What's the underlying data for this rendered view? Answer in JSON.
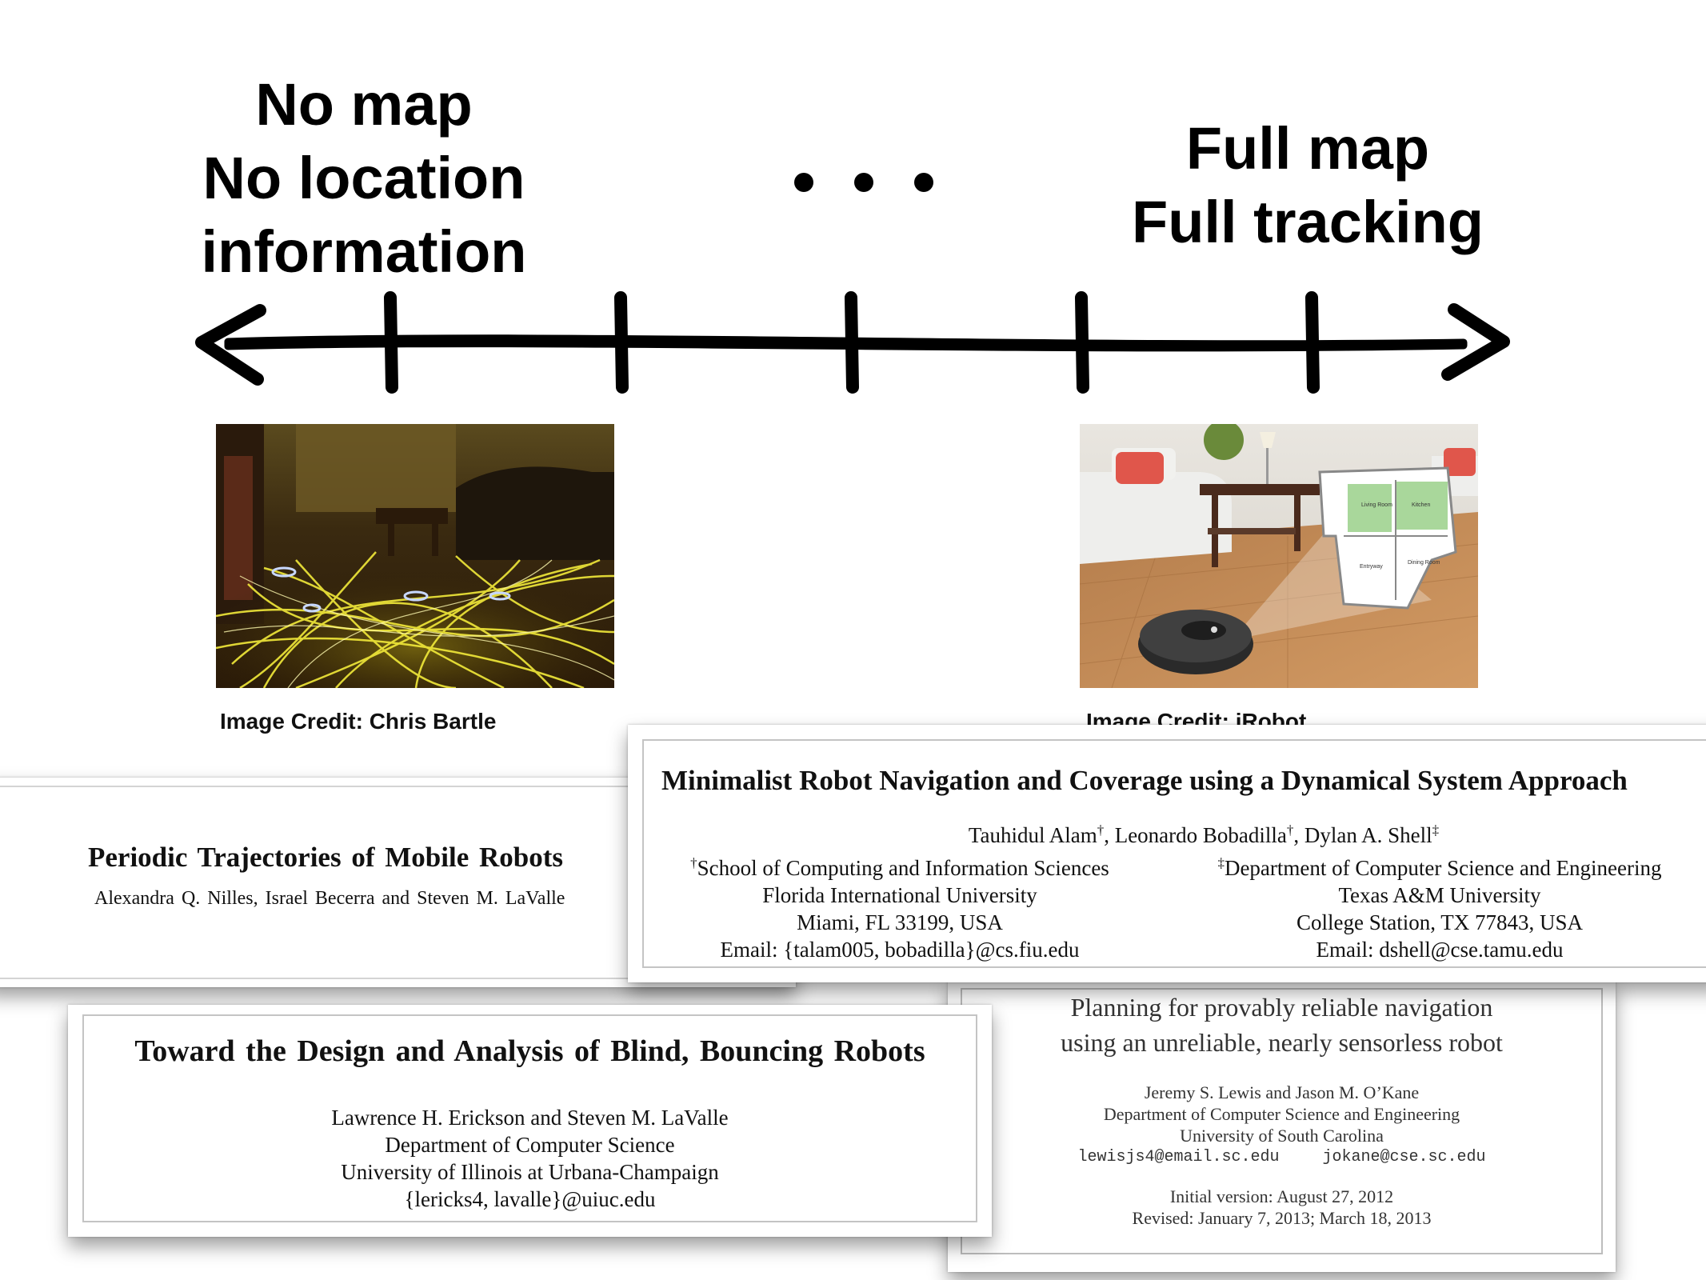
{
  "spectrum": {
    "left_lines": [
      "No map",
      "No location",
      "information"
    ],
    "ellipsis": "• • •",
    "right_lines": [
      "Full map",
      "Full tracking"
    ],
    "tick_count": 5
  },
  "photos": {
    "left": {
      "credit": "Image Credit: Chris Bartle",
      "subject": "long-exposure light trails of a robot vacuum in a living room"
    },
    "right": {
      "credit": "Image Credit: iRobot",
      "subject": "robot vacuum on wood floor with floor plan overlay"
    },
    "floorplan_rooms": [
      "Living Room",
      "Kitchen",
      "Entryway",
      "Dining Room"
    ]
  },
  "papers": {
    "periodic": {
      "title": "Periodic Trajectories of Mobile Robots",
      "authors": "Alexandra Q. Nilles, Israel Becerra and Steven M. LaValle"
    },
    "minimalist": {
      "title": "Minimalist Robot Navigation and Coverage using a Dynamical System Approach",
      "authors_text": "Tauhidul Alam†, Leonardo Bobadilla†, Dylan A. Shell‡",
      "affiliation_left": [
        "†School of Computing and Information Sciences",
        "Florida International University",
        "Miami, FL 33199, USA",
        "Email: {talam005, bobadilla}@cs.fiu.edu"
      ],
      "affiliation_right": [
        "‡Department of Computer Science and Engineering",
        "Texas A&M University",
        "College Station, TX 77843, USA",
        "Email: dshell@cse.tamu.edu"
      ]
    },
    "blind": {
      "title": "Toward the Design and Analysis of Blind, Bouncing Robots",
      "lines": [
        "Lawrence H. Erickson and Steven M. LaValle",
        "Department of Computer Science",
        "University of Illinois at Urbana-Champaign",
        "{lericks4, lavalle}@uiuc.edu"
      ]
    },
    "planning": {
      "title_lines": [
        "Planning for provably reliable navigation",
        "using an unreliable, nearly sensorless robot"
      ],
      "lines": [
        "Jeremy S. Lewis and Jason M. O’Kane",
        "Department of Computer Science and Engineering",
        "University of South Carolina"
      ],
      "emails": [
        "lewisjs4@email.sc.edu",
        "jokane@cse.sc.edu"
      ],
      "dates": [
        "Initial version: August 27, 2012",
        "Revised: January 7, 2013; March 18, 2013"
      ]
    }
  }
}
